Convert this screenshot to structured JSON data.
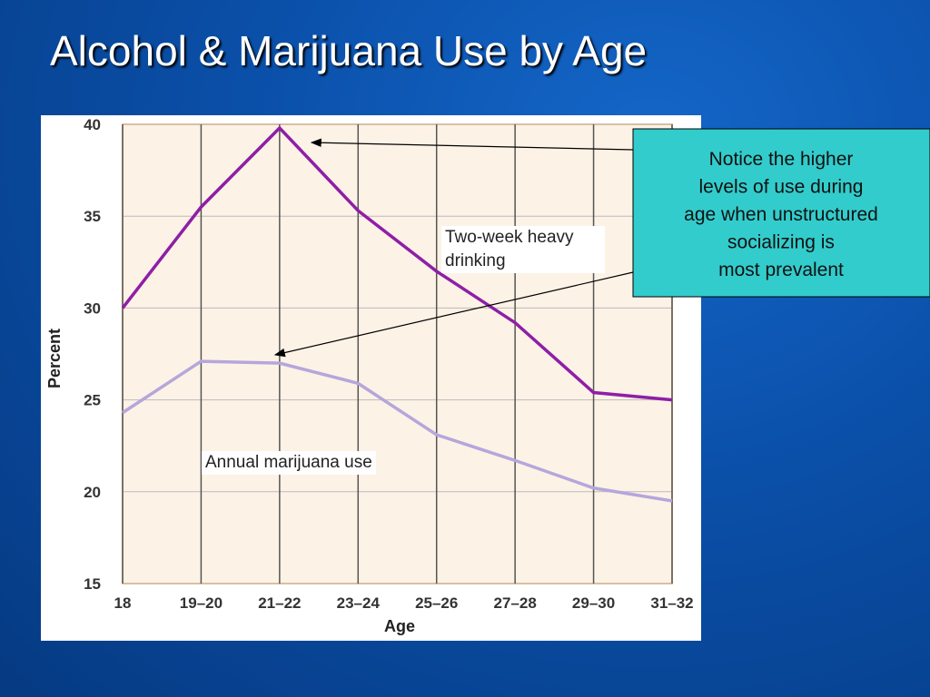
{
  "title": "Alcohol & Marijuana Use by Age",
  "note": [
    "Notice the higher",
    "levels of use during",
    "age when unstructured",
    "socializing is",
    "most prevalent"
  ],
  "chart_data": {
    "type": "line",
    "x_label": "Age",
    "y_label": "Percent",
    "categories": [
      "18",
      "19–20",
      "21–22",
      "23–24",
      "25–26",
      "27–28",
      "29–30",
      "31–32"
    ],
    "series": [
      {
        "name": "Two-week heavy drinking",
        "color": "#8e1fa6",
        "values": [
          30,
          35.5,
          39.8,
          35.3,
          32,
          29.2,
          25.4,
          25
        ]
      },
      {
        "name": "Annual marijuana use",
        "color": "#b5a6dc",
        "values": [
          24.3,
          27.1,
          27,
          25.9,
          23.1,
          21.7,
          20.2,
          19.5
        ]
      }
    ],
    "ylim": [
      15,
      40
    ],
    "yticks": [
      15,
      20,
      25,
      30,
      35,
      40
    ],
    "grid": true
  }
}
